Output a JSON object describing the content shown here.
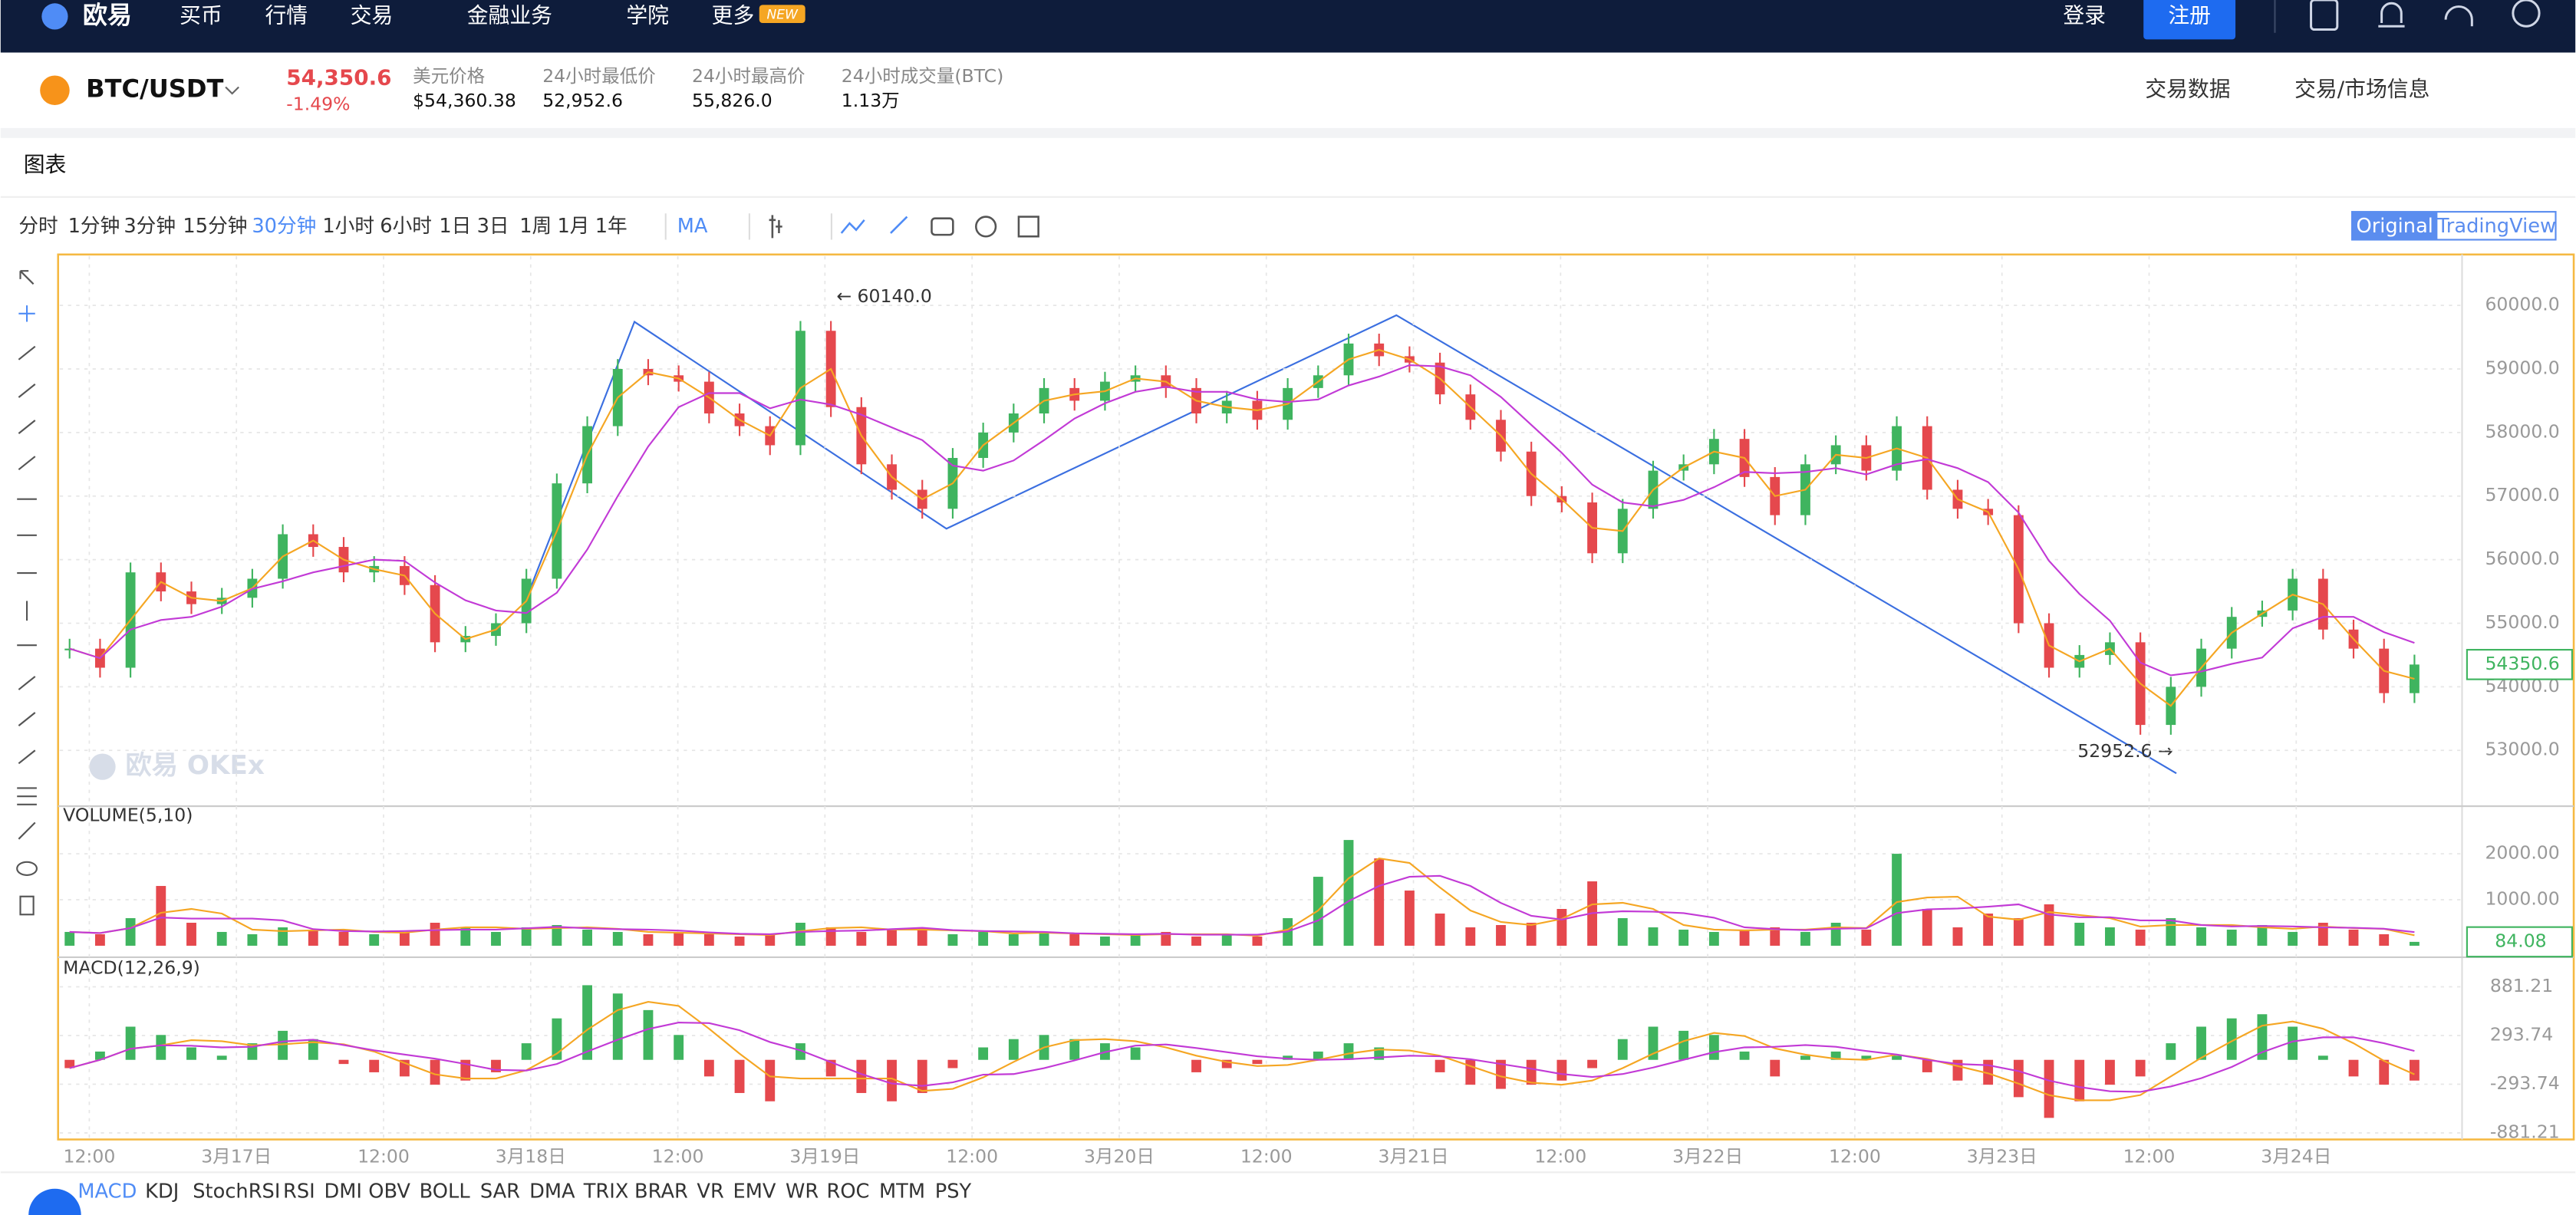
{
  "nav": {
    "logo": "欧易",
    "items": [
      "买币",
      "行情",
      "交易",
      "金融业务",
      "学院",
      "更多"
    ],
    "badge": "NEW",
    "login": "登录",
    "register": "注册"
  },
  "ticker": {
    "pair": "BTC/USDT",
    "price": "54,350.6",
    "change": "-1.49%",
    "stats": [
      {
        "label": "美元价格",
        "value": "$54,360.38"
      },
      {
        "label": "24小时最低价",
        "value": "52,952.6"
      },
      {
        "label": "24小时最高价",
        "value": "55,826.0"
      },
      {
        "label": "24小时成交量(BTC)",
        "value": "1.13万"
      }
    ],
    "links": [
      "交易数据",
      "交易/市场信息"
    ]
  },
  "panel_title": "图表",
  "toolbar": {
    "intervals": [
      "分时",
      "1分钟",
      "3分钟",
      "15分钟",
      "30分钟",
      "1小时",
      "6小时",
      "1日",
      "3日",
      "1周",
      "1月",
      "1年"
    ],
    "active_interval": 4,
    "indicator": "MA",
    "views": [
      "Original",
      "TradingView"
    ]
  },
  "chart": {
    "price_ticks": [
      {
        "value": 60000,
        "label": "60000.0"
      },
      {
        "value": 59000,
        "label": "59000.0"
      },
      {
        "value": 58000,
        "label": "58000.0"
      },
      {
        "value": 57000,
        "label": "57000.0"
      },
      {
        "value": 56000,
        "label": "56000.0"
      },
      {
        "value": 55000,
        "label": "55000.0"
      },
      {
        "value": 54000,
        "label": "54000.0"
      },
      {
        "value": 53000,
        "label": "53000.0"
      }
    ],
    "last_price": "54350.6",
    "high_note": "← 60140.0",
    "low_note": "52952.6 →",
    "watermark": "欧易 OKEx",
    "closes": [
      54600,
      54300,
      55800,
      55500,
      55300,
      55400,
      55700,
      56400,
      56200,
      55800,
      55900,
      55600,
      54700,
      54800,
      55000,
      55700,
      57200,
      58100,
      59000,
      58900,
      58800,
      58300,
      58100,
      57800,
      59600,
      58400,
      57500,
      57100,
      56800,
      57600,
      58000,
      58300,
      58700,
      58500,
      58800,
      58900,
      58700,
      58300,
      58500,
      58200,
      58700,
      58900,
      59400,
      59200,
      59100,
      58600,
      58200,
      57700,
      57000,
      56900,
      56100,
      56800,
      57400,
      57500,
      57900,
      57300,
      56700,
      57500,
      57800,
      57400,
      58100,
      57100,
      56800,
      56700,
      55000,
      54300,
      54500,
      54700,
      53400,
      54000,
      54600,
      55100,
      55200,
      55700,
      54900,
      54600,
      53900,
      54350
    ],
    "volume_title": "VOLUME(5,10)",
    "volume_ticks": [
      {
        "value": 2000,
        "label": "2000.00"
      },
      {
        "value": 1000,
        "label": "1000.00"
      }
    ],
    "last_volume": "84.08",
    "volumes": [
      300,
      250,
      600,
      1300,
      500,
      300,
      250,
      400,
      350,
      300,
      250,
      300,
      500,
      400,
      300,
      400,
      450,
      350,
      300,
      250,
      300,
      250,
      200,
      250,
      500,
      400,
      300,
      350,
      400,
      250,
      300,
      250,
      300,
      250,
      200,
      250,
      300,
      200,
      250,
      200,
      600,
      1500,
      2300,
      1900,
      1200,
      700,
      400,
      450,
      500,
      800,
      1400,
      600,
      400,
      350,
      300,
      350,
      400,
      300,
      500,
      350,
      2000,
      800,
      400,
      700,
      600,
      900,
      500,
      400,
      350,
      600,
      400,
      350,
      450,
      300,
      500,
      350,
      250,
      84.08
    ],
    "macd_title": "MACD(12,26,9)",
    "macd_ticks": [
      881.21,
      293.74,
      -293.74,
      -881.21
    ],
    "macd": [
      -100,
      100,
      400,
      300,
      150,
      50,
      200,
      350,
      250,
      -50,
      -150,
      -200,
      -300,
      -250,
      -150,
      200,
      500,
      900,
      800,
      600,
      300,
      -200,
      -400,
      -500,
      200,
      -200,
      -400,
      -500,
      -400,
      -100,
      150,
      250,
      300,
      250,
      200,
      150,
      0,
      -150,
      -100,
      -50,
      50,
      100,
      200,
      150,
      0,
      -150,
      -300,
      -350,
      -300,
      -250,
      -100,
      250,
      400,
      350,
      300,
      100,
      -200,
      50,
      100,
      50,
      50,
      -150,
      -250,
      -300,
      -450,
      -700,
      -500,
      -300,
      -200,
      200,
      400,
      500,
      550,
      400,
      50,
      -200,
      -300,
      -250
    ],
    "time_labels": [
      "12:00",
      "3月17日",
      "12:00",
      "3月18日",
      "12:00",
      "3月19日",
      "12:00",
      "3月20日",
      "12:00",
      "3月21日",
      "12:00",
      "3月22日",
      "12:00",
      "3月23日",
      "12:00",
      "3月24日"
    ],
    "indicator_tabs": [
      "MACD",
      "KDJ",
      "StochRSI",
      "RSI",
      "DMI",
      "OBV",
      "BOLL",
      "SAR",
      "DMA",
      "TRIX",
      "BRAR",
      "VR",
      "EMV",
      "WR",
      "ROC",
      "MTM",
      "PSY"
    ]
  }
}
